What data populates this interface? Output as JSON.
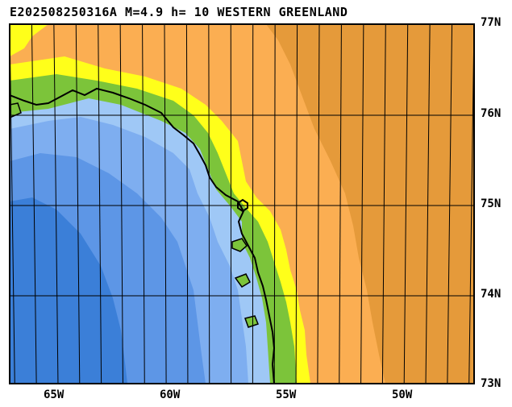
{
  "title": "E202508250316A M=4.9 h= 10 WESTERN GREENLAND",
  "event": {
    "id": "E202508250316A",
    "magnitude": "4.9",
    "depth": "10",
    "region": "WESTERN GREENLAND"
  },
  "lat_labels": [
    "77N",
    "76N",
    "75N",
    "74N",
    "73N"
  ],
  "lon_labels": [
    "65W",
    "60W",
    "55W",
    "50W"
  ],
  "colors": {
    "deep_ocean": "#3b7fd8",
    "ocean_mid": "#5d96e6",
    "ocean_light": "#7eaef0",
    "shelf": "#9fc8f6",
    "coast_green": "#7cc43a",
    "coast_yellow": "#ffff1a",
    "land_light": "#fbae52",
    "land_dark": "#e59a3a",
    "grid": "#000000"
  },
  "markers": [
    {
      "name": "epicenter",
      "shape": "hexagon"
    }
  ]
}
